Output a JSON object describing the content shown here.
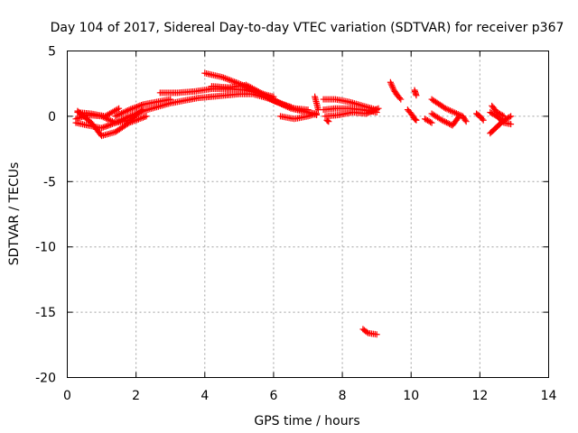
{
  "chart_data": {
    "type": "scatter",
    "title": "Day 104 of 2017, Sidereal Day-to-day VTEC variation (SDTVAR) for receiver p367",
    "xlabel": "GPS time / hours",
    "ylabel": "SDTVAR / TECUs",
    "xlim": [
      0,
      14
    ],
    "ylim": [
      -20,
      5
    ],
    "xticks": [
      "0",
      "2",
      "4",
      "6",
      "8",
      "10",
      "12",
      "14"
    ],
    "yticks": [
      "5",
      "0",
      "-5",
      "-10",
      "-15",
      "-20"
    ],
    "grid": true,
    "marker": "+",
    "point_color": "#ff0000",
    "segments": [
      {
        "x": [
          0.25,
          0.6,
          1.0,
          1.4,
          1.8,
          2.2,
          2.6,
          3.0,
          3.4,
          3.8,
          4.2,
          4.6,
          5.0,
          5.4,
          5.8,
          6.2,
          6.6,
          7.0,
          7.25
        ],
        "y": [
          -0.5,
          -0.7,
          -0.9,
          -0.5,
          0.0,
          0.4,
          0.7,
          1.0,
          1.2,
          1.4,
          1.5,
          1.6,
          1.7,
          1.7,
          1.4,
          1.0,
          0.6,
          0.3,
          0.2
        ]
      },
      {
        "x": [
          0.25,
          0.6,
          1.0,
          1.4,
          1.8,
          2.2
        ],
        "y": [
          -0.2,
          0.1,
          0.0,
          -0.5,
          -0.3,
          0.5
        ]
      },
      {
        "x": [
          0.3,
          0.7,
          1.0,
          1.4,
          1.8,
          2.3
        ],
        "y": [
          0.4,
          -0.5,
          -1.5,
          -1.2,
          -0.5,
          0.0
        ]
      },
      {
        "x": [
          0.3,
          0.7,
          1.1,
          1.5
        ],
        "y": [
          0.3,
          0.2,
          0.0,
          0.6
        ]
      },
      {
        "x": [
          1.4,
          1.8,
          2.2,
          2.6,
          3.0
        ],
        "y": [
          0.0,
          0.5,
          0.9,
          1.1,
          1.3
        ]
      },
      {
        "x": [
          2.7,
          3.2,
          3.7,
          4.2,
          4.7,
          5.2,
          5.7,
          6.0
        ],
        "y": [
          1.8,
          1.8,
          1.9,
          2.1,
          2.1,
          2.0,
          1.7,
          1.5
        ]
      },
      {
        "x": [
          4.0,
          4.5,
          5.0,
          5.5,
          6.0,
          6.5,
          7.0,
          7.25
        ],
        "y": [
          3.3,
          3.0,
          2.5,
          1.9,
          1.2,
          0.6,
          0.3,
          0.1
        ]
      },
      {
        "x": [
          4.2,
          4.7,
          5.2,
          5.7,
          6.2,
          6.6,
          7.0
        ],
        "y": [
          2.3,
          2.2,
          2.4,
          1.7,
          1.0,
          0.6,
          0.5
        ]
      },
      {
        "x": [
          6.2,
          6.6,
          7.0,
          7.25
        ],
        "y": [
          0.0,
          -0.2,
          0.0,
          0.2
        ]
      },
      {
        "x": [
          7.2,
          7.25,
          7.3
        ],
        "y": [
          1.5,
          1.0,
          0.5
        ]
      },
      {
        "x": [
          7.45,
          7.8,
          8.2,
          8.6,
          9.0
        ],
        "y": [
          1.3,
          1.3,
          1.1,
          0.8,
          0.5
        ]
      },
      {
        "x": [
          7.45,
          7.8,
          8.2,
          8.6,
          9.0
        ],
        "y": [
          0.5,
          0.6,
          0.6,
          0.5,
          0.3
        ]
      },
      {
        "x": [
          7.5,
          7.9,
          8.3,
          8.7,
          9.05
        ],
        "y": [
          0.0,
          0.1,
          0.3,
          0.2,
          0.6
        ]
      },
      {
        "x": [
          7.55,
          7.6
        ],
        "y": [
          -0.3,
          -0.4
        ]
      },
      {
        "x": [
          9.4,
          9.5,
          9.6,
          9.7
        ],
        "y": [
          2.6,
          2.0,
          1.6,
          1.3
        ]
      },
      {
        "x": [
          9.9,
          10.0,
          10.1,
          10.15
        ],
        "y": [
          0.5,
          0.2,
          -0.2,
          -0.3
        ]
      },
      {
        "x": [
          10.1,
          10.15
        ],
        "y": [
          2.0,
          1.6
        ]
      },
      {
        "x": [
          10.6,
          11.0,
          11.5,
          11.6
        ],
        "y": [
          1.3,
          0.6,
          0.0,
          -0.4
        ]
      },
      {
        "x": [
          10.6,
          10.9,
          11.2,
          11.4
        ],
        "y": [
          0.2,
          -0.3,
          -0.7,
          0.0
        ]
      },
      {
        "x": [
          10.4,
          10.6
        ],
        "y": [
          -0.2,
          -0.5
        ]
      },
      {
        "x": [
          11.9,
          12.0,
          12.1
        ],
        "y": [
          0.2,
          0.0,
          -0.3
        ]
      },
      {
        "x": [
          12.3,
          12.5,
          12.7,
          12.9
        ],
        "y": [
          -1.3,
          -0.8,
          -0.3,
          0.0
        ]
      },
      {
        "x": [
          12.3,
          12.5,
          12.7,
          12.9
        ],
        "y": [
          0.3,
          0.0,
          -0.5,
          -0.6
        ]
      },
      {
        "x": [
          12.35,
          12.5,
          12.7
        ],
        "y": [
          0.8,
          0.3,
          0.0
        ]
      },
      {
        "x": [
          8.6,
          8.75,
          9.0
        ],
        "y": [
          -16.3,
          -16.6,
          -16.7
        ]
      }
    ]
  }
}
